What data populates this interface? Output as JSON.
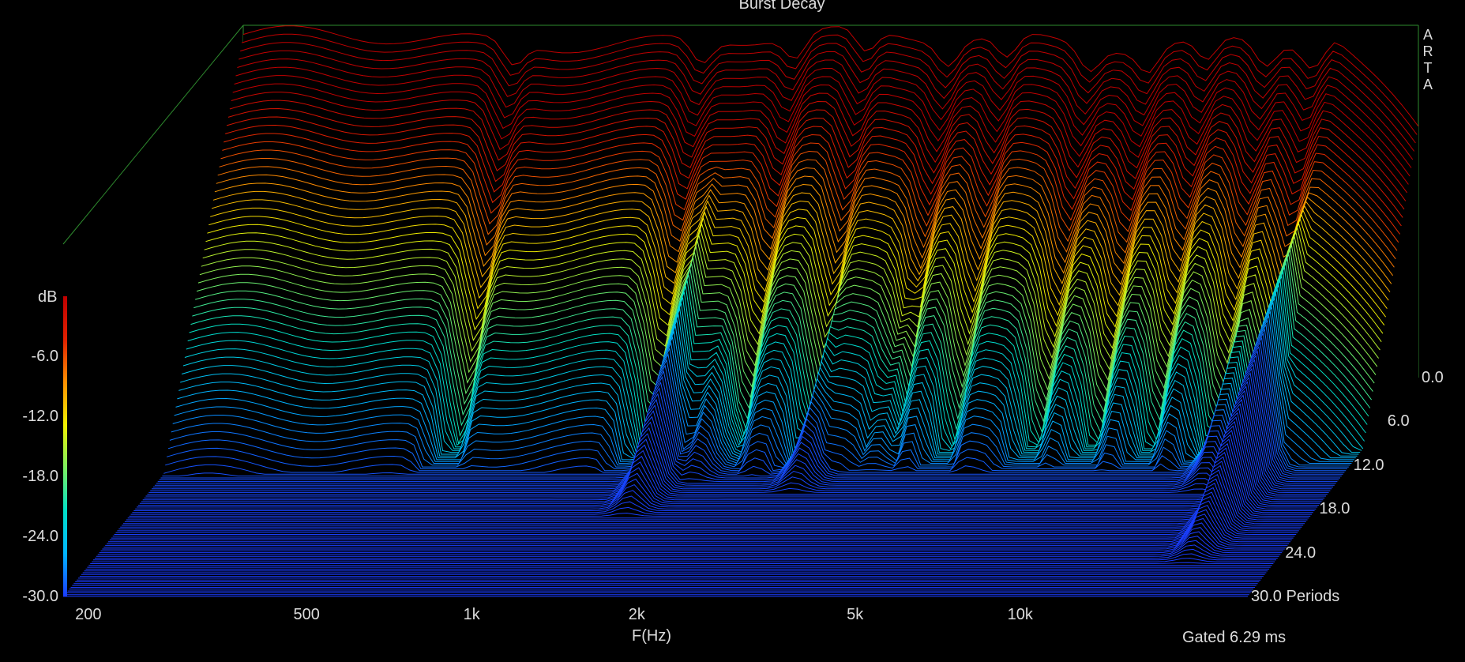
{
  "app": {
    "brand_letters": [
      "A",
      "R",
      "T",
      "A"
    ]
  },
  "chart_data": {
    "type": "waterfall-3d",
    "title": "Burst Decay",
    "xlabel": "F(Hz)",
    "x_scale": "log",
    "x_range": [
      180,
      26000
    ],
    "x_ticks": [
      {
        "value": 200,
        "label": "200"
      },
      {
        "value": 500,
        "label": "500"
      },
      {
        "value": 1000,
        "label": "1k"
      },
      {
        "value": 2000,
        "label": "2k"
      },
      {
        "value": 5000,
        "label": "5k"
      },
      {
        "value": 10000,
        "label": "10k"
      }
    ],
    "y_axis": {
      "unit_label": "dB",
      "range": [
        -30,
        0
      ],
      "ticks": [
        {
          "value": -6,
          "label": "-6.0"
        },
        {
          "value": -12,
          "label": "-12.0"
        },
        {
          "value": -18,
          "label": "-18.0"
        },
        {
          "value": -24,
          "label": "-24.0"
        },
        {
          "value": -30,
          "label": "-30.0"
        }
      ]
    },
    "z_axis": {
      "unit_label": "Periods",
      "range": [
        0,
        30
      ],
      "ticks": [
        {
          "value": 0,
          "label": "0.0"
        },
        {
          "value": 6,
          "label": "6.0"
        },
        {
          "value": 12,
          "label": "12.0"
        },
        {
          "value": 18,
          "label": "18.0"
        },
        {
          "value": 24,
          "label": "24.0"
        },
        {
          "value": 30,
          "label": "30.0 Periods"
        }
      ]
    },
    "gating_note": "Gated 6.29 ms",
    "slice_step_periods": 0.25,
    "colormap": [
      "#1a3cff",
      "#00b4ff",
      "#00e0c8",
      "#7cf060",
      "#f0f000",
      "#ff9000",
      "#e02000",
      "#c00000"
    ],
    "decay_peaks": [
      {
        "freq_hz": 1450,
        "level_db": -4.2,
        "length_periods": 12
      },
      {
        "freq_hz": 1700,
        "level_db": -6.0,
        "length_periods": 9
      },
      {
        "freq_hz": 2700,
        "level_db": -8.0,
        "length_periods": 10
      },
      {
        "freq_hz": 3500,
        "level_db": -9.0,
        "length_periods": 8
      },
      {
        "freq_hz": 5500,
        "level_db": -14.5,
        "length_periods": 8
      },
      {
        "freq_hz": 15000,
        "level_db": -9.5,
        "length_periods": 10
      },
      {
        "freq_hz": 18000,
        "level_db": -6.5,
        "length_periods": 16
      },
      {
        "freq_hz": 24000,
        "level_db": -12.0,
        "length_periods": 4
      }
    ]
  }
}
